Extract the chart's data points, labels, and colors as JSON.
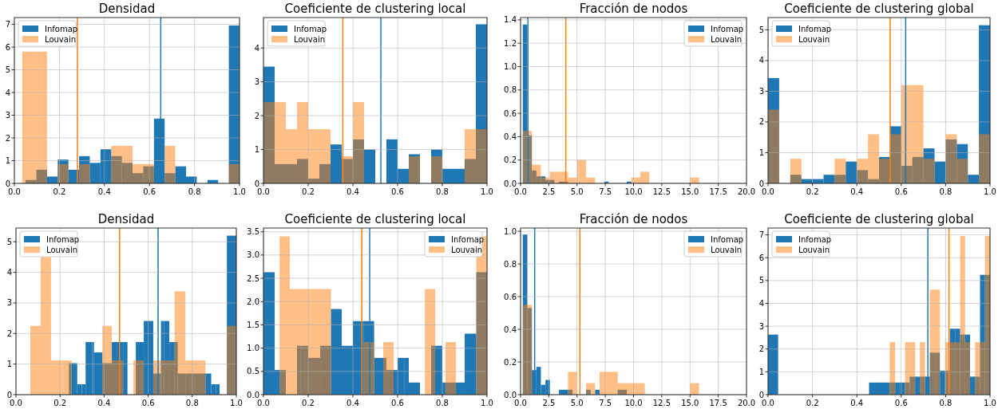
{
  "chart_data": [
    {
      "type": "histogram",
      "title": "Densidad",
      "grid": true,
      "legend": "top left",
      "xlim": [
        0,
        1
      ],
      "ylim": [
        0,
        7.3
      ],
      "xticks": [
        {
          "value": 0,
          "label": "0.0"
        },
        {
          "value": 0.2,
          "label": "0.2"
        },
        {
          "value": 0.4,
          "label": "0.4"
        },
        {
          "value": 0.6,
          "label": "0.6"
        },
        {
          "value": 0.8,
          "label": "0.8"
        },
        {
          "value": 1,
          "label": "1.0"
        }
      ],
      "yticks": [
        0,
        1,
        2,
        3,
        4,
        5,
        6,
        7
      ],
      "bins": [
        0.035,
        0.05,
        0.0975,
        0.145,
        0.1925,
        0.24,
        0.2875,
        0.335,
        0.3825,
        0.43,
        0.4775,
        0.525,
        0.5725,
        0.62,
        0.6675,
        0.715,
        0.7625,
        0.81,
        0.8575,
        0.905,
        0.9525,
        1.0
      ],
      "series": [
        {
          "name": "Infomap",
          "color": "#1f77b4",
          "values": [
            0,
            0.15,
            0.6,
            0.3,
            1.05,
            0.6,
            1.2,
            0.9,
            1.5,
            1.2,
            0.9,
            0.45,
            0.75,
            2.85,
            0.45,
            0.75,
            0.3,
            0,
            0.15,
            0,
            6.95
          ]
        },
        {
          "name": "Louvain",
          "color": "#ff7f0e",
          "values": [
            5.8,
            5.8,
            5.8,
            0,
            0.85,
            0,
            0.85,
            0,
            0,
            1.65,
            1.65,
            0.85,
            0.85,
            0,
            1.65,
            0,
            0,
            0,
            0,
            0,
            0.85
          ]
        }
      ],
      "ref_lines": [
        {
          "axis": "x",
          "value": 0.28,
          "color": "#ff7f0e"
        },
        {
          "axis": "x",
          "value": 0.65,
          "color": "#1f77b4"
        }
      ]
    },
    {
      "type": "histogram",
      "title": "Coeficiente de clustering local",
      "grid": true,
      "legend": "top left",
      "xlim": [
        0,
        1
      ],
      "ylim": [
        0,
        4.9
      ],
      "xticks": [
        {
          "value": 0,
          "label": "0.0"
        },
        {
          "value": 0.2,
          "label": "0.2"
        },
        {
          "value": 0.4,
          "label": "0.4"
        },
        {
          "value": 0.6,
          "label": "0.6"
        },
        {
          "value": 0.8,
          "label": "0.8"
        },
        {
          "value": 1,
          "label": "1.0"
        }
      ],
      "yticks": [
        0,
        1,
        2,
        3,
        4
      ],
      "bins": [
        0,
        0.05,
        0.1,
        0.15,
        0.2,
        0.25,
        0.3,
        0.35,
        0.4,
        0.45,
        0.5,
        0.55,
        0.6,
        0.65,
        0.7,
        0.75,
        0.8,
        0.85,
        0.9,
        0.95,
        1.0
      ],
      "series": [
        {
          "name": "Infomap",
          "color": "#1f77b4",
          "values": [
            3.45,
            0.57,
            0.57,
            0.72,
            0.14,
            0.57,
            1.15,
            0.72,
            1.3,
            1.0,
            0,
            1.3,
            0.43,
            0.86,
            0,
            1.0,
            0.43,
            0.43,
            0.72,
            4.7
          ]
        },
        {
          "name": "Louvain",
          "color": "#ff7f0e",
          "values": [
            2.4,
            2.4,
            1.6,
            2.4,
            1.6,
            1.6,
            0,
            0.8,
            2.4,
            0,
            0,
            0,
            0,
            0.8,
            0,
            0.8,
            0,
            0,
            1.6,
            1.6
          ]
        }
      ],
      "ref_lines": [
        {
          "axis": "x",
          "value": 0.355,
          "color": "#ff7f0e"
        },
        {
          "axis": "x",
          "value": 0.525,
          "color": "#1f77b4"
        }
      ]
    },
    {
      "type": "histogram",
      "title": "Fracción de nodos",
      "grid": true,
      "legend": "top right",
      "xlim": [
        0,
        20
      ],
      "ylim": [
        0,
        1.42
      ],
      "xticks": [
        {
          "value": 0,
          "label": "0.0"
        },
        2.5,
        {
          "value": 5,
          "label": "5.0"
        },
        7.5,
        {
          "value": 10,
          "label": "10.0"
        },
        12.5,
        {
          "value": 15,
          "label": "15.0"
        },
        17.5,
        {
          "value": 20,
          "label": "20.0"
        }
      ],
      "yticks": [
        {
          "value": 0,
          "label": "0.0"
        },
        0.2,
        0.4,
        0.6,
        0.8,
        {
          "value": 1,
          "label": "1.0"
        },
        1.2,
        1.4
      ],
      "bins": [
        0.2,
        0.6,
        1.0,
        1.4,
        1.8,
        2.2,
        2.6,
        3.0,
        3.4,
        4.2,
        5.0,
        5.8,
        6.6,
        7.4,
        7.8,
        9.4,
        9.8,
        10.6,
        11.4,
        15.0,
        15.8
      ],
      "series": [
        {
          "name": "Infomap",
          "color": "#1f77b4",
          "values": [
            1.36,
            0.41,
            0.11,
            0.06,
            0.06,
            0.03,
            0.03,
            0,
            0.015,
            0,
            0,
            0,
            0,
            0.015,
            0,
            0.015,
            0,
            0,
            0,
            0
          ]
        },
        {
          "name": "Louvain",
          "color": "#ff7f0e",
          "values": [
            0.45,
            0.45,
            0.16,
            0.16,
            0.05,
            0.05,
            0.1,
            0.1,
            0.1,
            0.05,
            0.2,
            0.05,
            0,
            0,
            0,
            0,
            0.05,
            0.1,
            0,
            0.05
          ]
        }
      ],
      "ref_lines": [
        {
          "axis": "x",
          "value": 0.65,
          "color": "#1f77b4"
        },
        {
          "axis": "x",
          "value": 4.0,
          "color": "#ff7f0e"
        }
      ]
    },
    {
      "type": "histogram",
      "title": "Coeficiente de clustering global",
      "grid": true,
      "legend": "top left",
      "xlim": [
        0,
        1
      ],
      "ylim": [
        0,
        5.4
      ],
      "xticks": [
        {
          "value": 0,
          "label": "0.0"
        },
        {
          "value": 0.2,
          "label": "0.2"
        },
        {
          "value": 0.4,
          "label": "0.4"
        },
        {
          "value": 0.6,
          "label": "0.6"
        },
        {
          "value": 0.8,
          "label": "0.8"
        },
        {
          "value": 1,
          "label": "1.0"
        }
      ],
      "yticks": [
        0,
        1,
        2,
        3,
        4,
        5
      ],
      "bins": [
        0,
        0.05,
        0.1,
        0.15,
        0.2,
        0.25,
        0.3,
        0.35,
        0.4,
        0.45,
        0.5,
        0.55,
        0.6,
        0.65,
        0.7,
        0.75,
        0.8,
        0.85,
        0.9,
        0.95,
        1.0
      ],
      "series": [
        {
          "name": "Infomap",
          "color": "#1f77b4",
          "values": [
            3.43,
            0,
            0.28,
            0.14,
            0.14,
            0.28,
            0.28,
            0.71,
            0.43,
            0.14,
            0.86,
            1.86,
            0.57,
            0.86,
            1.14,
            0.71,
            1.43,
            1.28,
            0.28,
            5.15
          ]
        },
        {
          "name": "Louvain",
          "color": "#ff7f0e",
          "values": [
            2.4,
            0,
            0.8,
            0,
            0,
            0,
            0.8,
            0,
            0.8,
            1.6,
            0.8,
            1.6,
            3.2,
            3.2,
            0.8,
            0,
            1.6,
            0.8,
            0,
            1.6
          ]
        }
      ],
      "ref_lines": [
        {
          "axis": "x",
          "value": 0.55,
          "color": "#ff7f0e"
        },
        {
          "axis": "x",
          "value": 0.62,
          "color": "#1f77b4"
        }
      ]
    },
    {
      "type": "histogram",
      "title": "Densidad",
      "grid": true,
      "legend": "top left",
      "xlim": [
        0,
        1
      ],
      "ylim": [
        0,
        5.45
      ],
      "xticks": [
        {
          "value": 0,
          "label": "0.0"
        },
        {
          "value": 0.2,
          "label": "0.2"
        },
        {
          "value": 0.4,
          "label": "0.4"
        },
        {
          "value": 0.6,
          "label": "0.6"
        },
        {
          "value": 0.8,
          "label": "0.8"
        },
        {
          "value": 1,
          "label": "1.0"
        }
      ],
      "yticks": [
        0,
        1,
        2,
        3,
        4,
        5
      ],
      "bins": [
        0.065,
        0.112,
        0.159,
        0.205,
        0.24,
        0.252,
        0.278,
        0.299,
        0.316,
        0.346,
        0.354,
        0.392,
        0.435,
        0.468,
        0.486,
        0.506,
        0.533,
        0.544,
        0.58,
        0.623,
        0.658,
        0.673,
        0.696,
        0.72,
        0.734,
        0.769,
        0.811,
        0.848,
        0.86,
        0.886,
        0.907,
        0.924,
        0.957,
        1.0
      ],
      "series": [
        {
          "name": "Infomap",
          "color": "#1f77b4",
          "values": [
            0,
            0,
            0,
            0,
            1.03,
            1.03,
            0.34,
            0.34,
            1.72,
            1.72,
            1.38,
            1.03,
            1.72,
            1.72,
            1.72,
            0,
            0,
            1.72,
            2.41,
            0.69,
            2.41,
            2.41,
            1.72,
            1.72,
            0.69,
            0.69,
            0.69,
            0.69,
            0.69,
            0.34,
            0.34,
            0,
            5.2
          ]
        },
        {
          "name": "Louvain",
          "color": "#ff7f0e",
          "values": [
            2.25,
            4.5,
            1.12,
            1.12,
            1.12,
            0,
            0,
            0,
            0,
            0,
            0,
            2.25,
            1.12,
            1.12,
            0,
            0,
            1.12,
            1.12,
            0,
            1.12,
            1.12,
            1.12,
            1.12,
            3.38,
            3.38,
            1.12,
            1.12,
            1.12,
            0,
            0,
            0,
            0,
            2.25
          ]
        }
      ],
      "ref_lines": [
        {
          "axis": "x",
          "value": 0.47,
          "color": "#ff7f0e"
        },
        {
          "axis": "x",
          "value": 0.645,
          "color": "#1f77b4"
        }
      ]
    },
    {
      "type": "histogram",
      "title": "Coeficiente de clustering local",
      "grid": true,
      "legend": "top right",
      "xlim": [
        0,
        1
      ],
      "ylim": [
        0,
        3.58
      ],
      "xticks": [
        {
          "value": 0,
          "label": "0.0"
        },
        {
          "value": 0.2,
          "label": "0.2"
        },
        {
          "value": 0.4,
          "label": "0.4"
        },
        {
          "value": 0.6,
          "label": "0.6"
        },
        {
          "value": 0.8,
          "label": "0.8"
        },
        {
          "value": 1,
          "label": "1.0"
        }
      ],
      "yticks": [
        {
          "value": 0,
          "label": "0.0"
        },
        0.5,
        {
          "value": 1,
          "label": "1.0"
        },
        1.5,
        {
          "value": 2,
          "label": "2.0"
        },
        2.5,
        {
          "value": 3,
          "label": "3.0"
        },
        3.5
      ],
      "bins": [
        0,
        0.05,
        0.072,
        0.1,
        0.118,
        0.15,
        0.165,
        0.2,
        0.211,
        0.254,
        0.302,
        0.35,
        0.4,
        0.447,
        0.495,
        0.536,
        0.55,
        0.582,
        0.6,
        0.629,
        0.65,
        0.675,
        0.7,
        0.722,
        0.75,
        0.768,
        0.8,
        0.814,
        0.85,
        0.861,
        0.9,
        0.907,
        0.952,
        1.0
      ],
      "series": [
        {
          "name": "Infomap",
          "color": "#1f77b4",
          "values": [
            2.63,
            0.53,
            0.53,
            0,
            0,
            1.05,
            1.05,
            0.79,
            0.79,
            1.05,
            1.84,
            1.05,
            1.58,
            1.58,
            0.79,
            0.79,
            0.53,
            0.53,
            0.79,
            0.79,
            0.26,
            0.26,
            0,
            0,
            1.05,
            1.05,
            0.26,
            0.26,
            0.26,
            0.26,
            1.31,
            1.31,
            2.63
          ]
        },
        {
          "name": "Louvain",
          "color": "#ff7f0e",
          "values": [
            0,
            0,
            3.4,
            3.4,
            2.27,
            2.27,
            2.27,
            2.27,
            2.27,
            2.27,
            0,
            0,
            0,
            1.13,
            0,
            1.13,
            1.13,
            0,
            0,
            0,
            0,
            0,
            0,
            2.27,
            2.27,
            0,
            0,
            1.13,
            1.13,
            0,
            0,
            0,
            3.4
          ]
        }
      ],
      "ref_lines": [
        {
          "axis": "x",
          "value": 0.44,
          "color": "#ff7f0e"
        },
        {
          "axis": "x",
          "value": 0.475,
          "color": "#1f77b4"
        }
      ]
    },
    {
      "type": "histogram",
      "title": "Fracción de nodos",
      "grid": true,
      "legend": "top right",
      "xlim": [
        0,
        20
      ],
      "ylim": [
        0,
        1.02
      ],
      "xticks": [
        {
          "value": 0,
          "label": "0.0"
        },
        2.5,
        {
          "value": 5,
          "label": "5.0"
        },
        7.5,
        {
          "value": 10,
          "label": "10.0"
        },
        12.5,
        {
          "value": 15,
          "label": "15.0"
        },
        17.5,
        {
          "value": 20,
          "label": "20.0"
        }
      ],
      "yticks": [
        {
          "value": 0,
          "label": "0.0"
        },
        0.2,
        0.4,
        0.6,
        0.8,
        {
          "value": 1,
          "label": "1.0"
        }
      ],
      "bins": [
        0.2,
        0.6,
        1.0,
        1.4,
        1.8,
        2.2,
        2.6,
        3.4,
        4.2,
        4.6,
        5.0,
        5.8,
        6.2,
        6.6,
        7.0,
        8.6,
        9.4,
        11.0,
        15.0,
        15.8
      ],
      "series": [
        {
          "name": "Infomap",
          "color": "#1f77b4",
          "values": [
            0.98,
            0.53,
            0.15,
            0.17,
            0.06,
            0.09,
            0,
            0.03,
            0.03,
            0,
            0,
            0.03,
            0,
            0.03,
            0,
            0.03,
            0,
            0,
            0
          ]
        },
        {
          "name": "Louvain",
          "color": "#ff7f0e",
          "values": [
            0.55,
            0.55,
            0,
            0,
            0,
            0,
            0,
            0,
            0.14,
            0.14,
            0,
            0.07,
            0.07,
            0,
            0.14,
            0.07,
            0.07,
            0,
            0.07
          ]
        }
      ],
      "ref_lines": [
        {
          "axis": "x",
          "value": 1.25,
          "color": "#1f77b4"
        },
        {
          "axis": "x",
          "value": 5.25,
          "color": "#ff7f0e"
        }
      ]
    },
    {
      "type": "histogram",
      "title": "Coeficiente de clustering global",
      "grid": true,
      "legend": "top left",
      "xlim": [
        0,
        1
      ],
      "ylim": [
        0,
        7.3
      ],
      "xticks": [
        {
          "value": 0,
          "label": "0.0"
        },
        {
          "value": 0.2,
          "label": "0.2"
        },
        {
          "value": 0.4,
          "label": "0.4"
        },
        {
          "value": 0.6,
          "label": "0.6"
        },
        {
          "value": 0.8,
          "label": "0.8"
        },
        {
          "value": 1,
          "label": "1.0"
        }
      ],
      "yticks": [
        0,
        1,
        2,
        3,
        4,
        5,
        6,
        7
      ],
      "bins": [
        0,
        0.0455,
        0.455,
        0.5,
        0.548,
        0.5725,
        0.593,
        0.6175,
        0.638,
        0.6625,
        0.684,
        0.7075,
        0.729,
        0.7525,
        0.774,
        0.7975,
        0.819,
        0.8425,
        0.865,
        0.8875,
        0.91,
        0.9325,
        0.955,
        0.9775,
        1.0
      ],
      "series": [
        {
          "name": "Infomap",
          "color": "#1f77b4",
          "values": [
            2.63,
            0,
            0.53,
            0.53,
            0.53,
            0.53,
            0.53,
            0.53,
            0.79,
            0.79,
            0.79,
            0.79,
            1.84,
            1.84,
            1.05,
            1.05,
            2.89,
            2.89,
            2.63,
            2.63,
            0.79,
            0.79,
            5.25,
            5.25
          ]
        },
        {
          "name": "Louvain",
          "color": "#ff7f0e",
          "values": [
            0,
            0,
            0,
            0,
            2.3,
            0,
            0,
            2.3,
            2.3,
            0,
            2.3,
            0,
            4.6,
            4.6,
            0,
            2.3,
            2.3,
            2.3,
            6.95,
            2.3,
            0,
            2.3,
            2.3,
            6.95
          ]
        }
      ],
      "ref_lines": [
        {
          "axis": "x",
          "value": 0.72,
          "color": "#1f77b4"
        },
        {
          "axis": "x",
          "value": 0.815,
          "color": "#ff7f0e"
        }
      ]
    }
  ]
}
